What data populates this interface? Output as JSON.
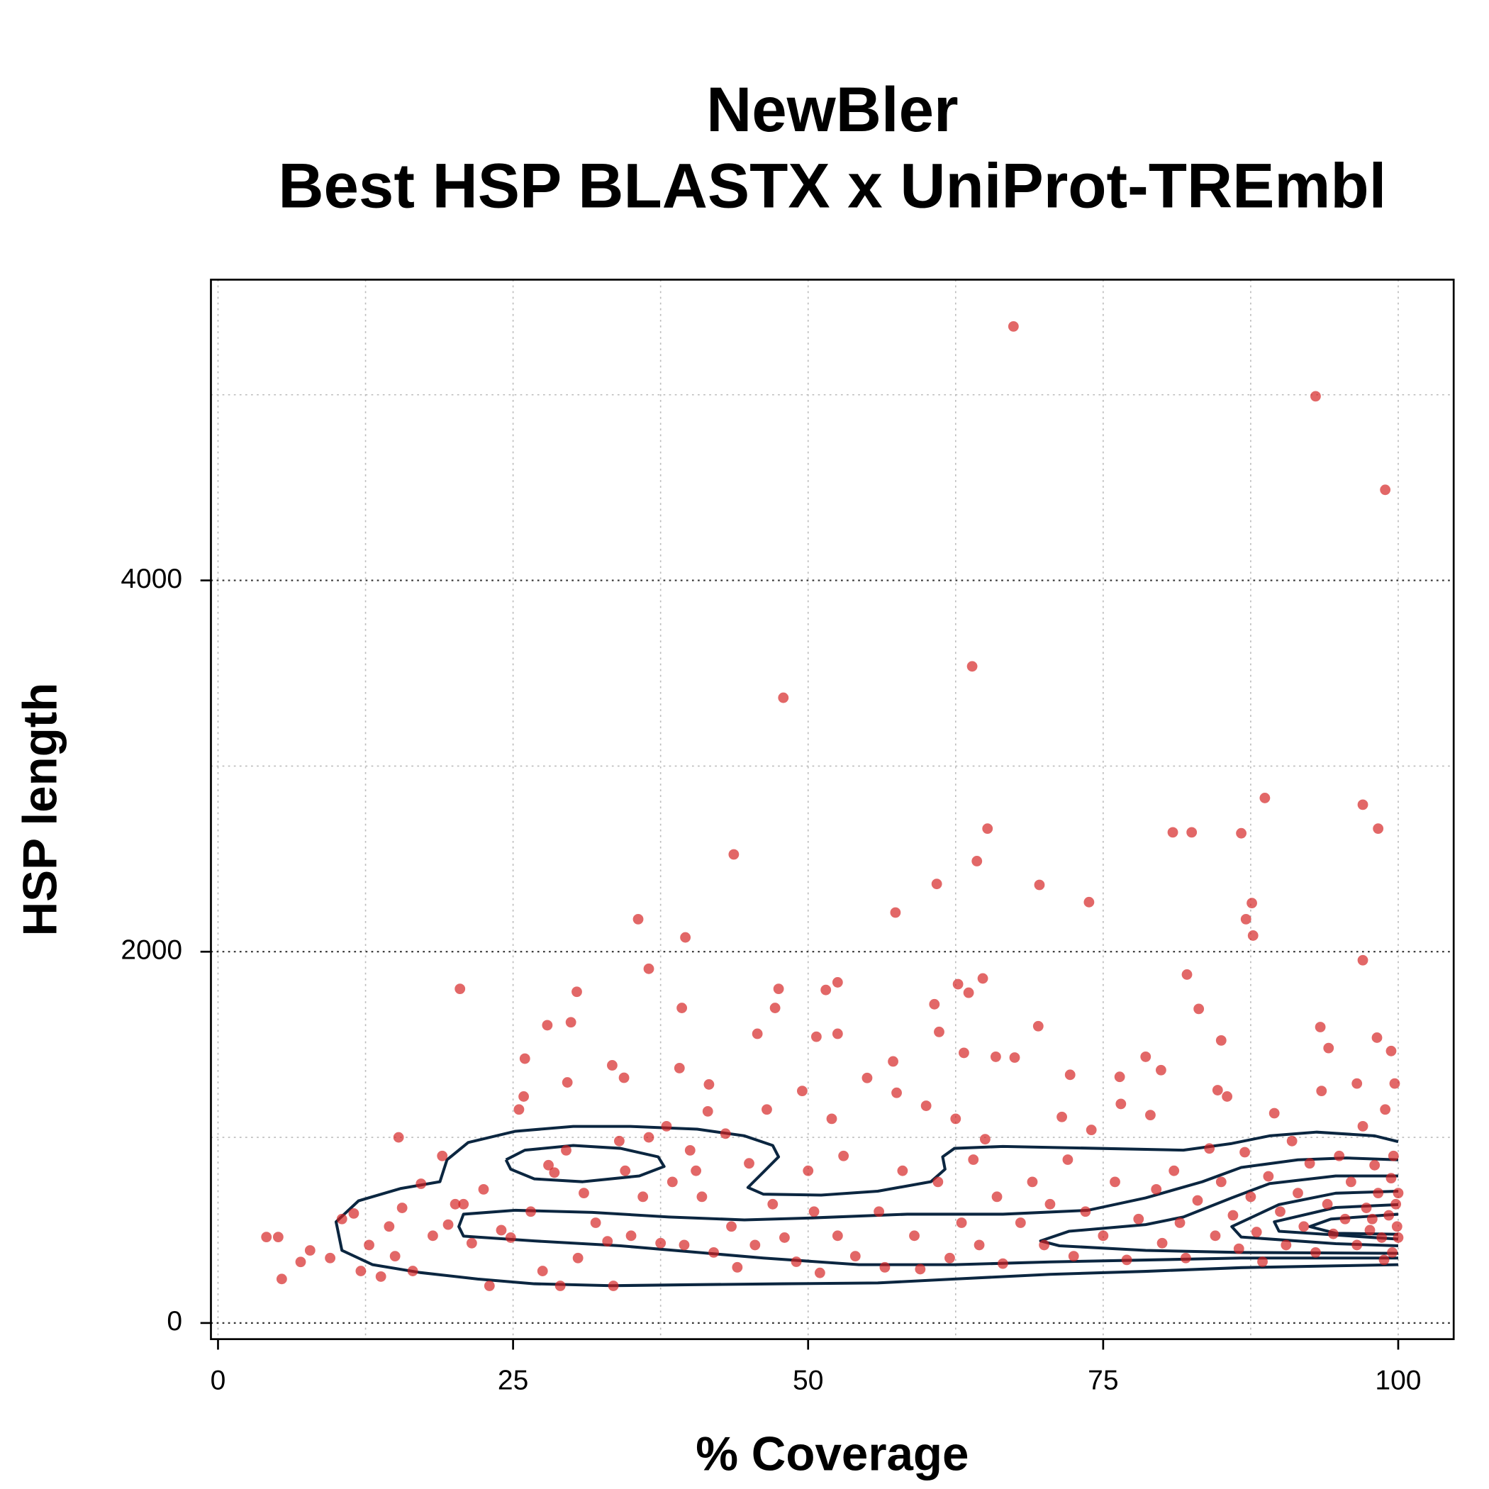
{
  "chart_data": {
    "type": "scatter",
    "title": "NewBler",
    "subtitle": "Best HSP BLASTX x UniProt-TREmbl",
    "x_label": "% Coverage",
    "y_label": "HSP length",
    "xlim": [
      -0.6,
      104.7
    ],
    "ylim": [
      -87,
      5620
    ],
    "xticks": [
      0,
      25,
      50,
      75,
      100
    ],
    "yticks": [
      0,
      2000,
      4000
    ],
    "minor_xticks": [
      12.5,
      37.5,
      62.5,
      87.5
    ],
    "minor_yticks": [
      1000,
      3000,
      5000
    ],
    "grid": true,
    "color": "#d41f1f",
    "contour_color": "#0b2640",
    "x": [
      67.4,
      93.0,
      98.9,
      63.9,
      47.9,
      88.7,
      97.0,
      98.3,
      65.2,
      80.9,
      82.5,
      86.7,
      43.7,
      64.3,
      60.9,
      69.6,
      73.8,
      87.6,
      57.4,
      35.6,
      87.1,
      39.6,
      87.7,
      97.0,
      36.5,
      82.1,
      20.5,
      30.4,
      47.5,
      64.8,
      52.5,
      51.5,
      62.7,
      63.6,
      60.7,
      39.3,
      47.2,
      83.1,
      27.9,
      29.9,
      69.5,
      93.4,
      61.1,
      45.7,
      50.7,
      52.5,
      98.2,
      85.0,
      94.1,
      26.0,
      78.6,
      65.9,
      63.2,
      99.4,
      57.2,
      33.4,
      39.1,
      79.9,
      72.2,
      76.4,
      84.7,
      96.5,
      29.6,
      41.6,
      34.4,
      4.1,
      5.1,
      5.4,
      7,
      7.8,
      9.5,
      10.5,
      11.5,
      12.1,
      12.8,
      13.8,
      14.5,
      15,
      15.3,
      15.6,
      16.5,
      17.2,
      18.2,
      19,
      19.5,
      20.1,
      20.8,
      21.5,
      22.5,
      23,
      24,
      24.8,
      25.5,
      25.9,
      26.5,
      27.5,
      28,
      28.5,
      29,
      29.5,
      30.5,
      31,
      32,
      33,
      33.5,
      34,
      34.5,
      35,
      36,
      36.5,
      37.5,
      38,
      38.5,
      39.5,
      40,
      40.5,
      41,
      41.5,
      42,
      43,
      43.5,
      44,
      45,
      45.5,
      46.5,
      47,
      48,
      49,
      49.5,
      50,
      50.5,
      51,
      52,
      52.5,
      53,
      54,
      55,
      56,
      56.5,
      57.5,
      58,
      59,
      59.5,
      60,
      61,
      62,
      62.5,
      63,
      64,
      64.5,
      65,
      66,
      66.5,
      67.5,
      68,
      69,
      70,
      70.5,
      71.5,
      72,
      72.5,
      73.5,
      74,
      75,
      76,
      76.5,
      77,
      78,
      79,
      79.5,
      80,
      81,
      81.5,
      82,
      83,
      84,
      84.5,
      85,
      85.5,
      86,
      86.5,
      87,
      87.5,
      88,
      88.5,
      89,
      89.5,
      90,
      90.5,
      91,
      91.5,
      92,
      92.5,
      93,
      93.5,
      94,
      94.5,
      95,
      95.5,
      96,
      96.5,
      97,
      97.3,
      97.6,
      98,
      98.3,
      98.6,
      98.9,
      99.2,
      99.4,
      99.6,
      99.8,
      99.9,
      100,
      100,
      99.7,
      99.5,
      98.8,
      97.8
    ],
    "y": [
      5368,
      4992,
      4488,
      3537,
      3368,
      2828,
      2792,
      2663,
      2663,
      2643,
      2643,
      2638,
      2524,
      2488,
      2365,
      2360,
      2267,
      2262,
      2211,
      2175,
      2175,
      2077,
      2087,
      1954,
      1908,
      1877,
      1800,
      1784,
      1800,
      1856,
      1835,
      1794,
      1825,
      1779,
      1717,
      1697,
      1697,
      1692,
      1604,
      1620,
      1599,
      1594,
      1568,
      1558,
      1542,
      1558,
      1537,
      1522,
      1481,
      1424,
      1434,
      1434,
      1455,
      1465,
      1409,
      1388,
      1373,
      1362,
      1337,
      1326,
      1254,
      1290,
      1296,
      1285,
      1321,
      463,
      463,
      237,
      329,
      391,
      350,
      560,
      590,
      280,
      420,
      250,
      520,
      360,
      1000,
      620,
      280,
      750,
      470,
      900,
      530,
      640,
      640,
      430,
      720,
      200,
      500,
      460,
      1150,
      1220,
      600,
      280,
      850,
      810,
      200,
      930,
      350,
      700,
      540,
      440,
      200,
      980,
      820,
      470,
      680,
      1000,
      430,
      1060,
      760,
      420,
      930,
      820,
      680,
      1140,
      380,
      1020,
      520,
      300,
      860,
      420,
      1150,
      640,
      460,
      330,
      1250,
      820,
      600,
      270,
      1100,
      470,
      900,
      360,
      1320,
      600,
      300,
      1240,
      820,
      470,
      290,
      1170,
      760,
      350,
      1100,
      540,
      880,
      420,
      990,
      680,
      320,
      1430,
      540,
      760,
      420,
      640,
      1110,
      880,
      360,
      600,
      1040,
      470,
      760,
      1180,
      340,
      560,
      1120,
      720,
      430,
      820,
      540,
      350,
      660,
      940,
      470,
      760,
      1220,
      580,
      400,
      920,
      680,
      490,
      330,
      790,
      1130,
      600,
      420,
      980,
      700,
      520,
      860,
      380,
      1250,
      640,
      480,
      900,
      560,
      760,
      420,
      1060,
      620,
      500,
      850,
      700,
      460,
      1150,
      580,
      780,
      900,
      640,
      520,
      700,
      460,
      1290,
      380,
      340,
      560
    ],
    "contours": [
      {
        "x": [
          100,
          98.0,
          93.1,
          89.1,
          85.9,
          81.8,
          74.5,
          66.5,
          62.4,
          61.4,
          61.6,
          60.4,
          55.9,
          51.1,
          46.2,
          44.9,
          46.2,
          47.5,
          47.0,
          44.6,
          40.6,
          34.9,
          30.1,
          25.2,
          21.2,
          19.4,
          18.8,
          15.5,
          11.9,
          10.0,
          10.5,
          13.1,
          17.1,
          22.0,
          26.8,
          33.3,
          39.8,
          47.9,
          55.9,
          62.4,
          70.5,
          78.6,
          86.7,
          94.7,
          100
        ],
        "y": [
          977,
          1008,
          1028,
          1008,
          967,
          931,
          941,
          951,
          941,
          895,
          828,
          761,
          710,
          689,
          694,
          730,
          812,
          895,
          956,
          1008,
          1044,
          1059,
          1059,
          1033,
          972,
          879,
          761,
          725,
          658,
          545,
          391,
          314,
          272,
          237,
          211,
          201,
          206,
          211,
          216,
          237,
          262,
          278,
          298,
          308,
          314
        ]
      },
      {
        "x": [
          24.4,
          26.0,
          30.1,
          34.1,
          37.3,
          37.8,
          35.7,
          30.9,
          26.8,
          24.8,
          24.4
        ],
        "y": [
          879,
          931,
          956,
          941,
          895,
          843,
          792,
          761,
          776,
          828,
          879
        ]
      },
      {
        "x": [
          100,
          95.6,
          91.5,
          86.7,
          83.4,
          78.6,
          73.7,
          66.5,
          58.4,
          50.3,
          44.6,
          38.2,
          31.7,
          25.2,
          20.8,
          20.4,
          20.8,
          26.8,
          34.1,
          46.2,
          54.3,
          62.4,
          70.5,
          78.6,
          86.7,
          94.7,
          100
        ],
        "y": [
          879,
          889,
          879,
          838,
          761,
          674,
          607,
          586,
          586,
          566,
          555,
          571,
          596,
          607,
          586,
          519,
          468,
          442,
          416,
          350,
          314,
          314,
          329,
          339,
          350,
          350,
          350
        ]
      },
      {
        "x": [
          100,
          94.7,
          89.1,
          85.9,
          81.8,
          78.6,
          72.1,
          69.7,
          71.3,
          78.6,
          86.7,
          100
        ],
        "y": [
          792,
          792,
          751,
          674,
          571,
          530,
          494,
          442,
          416,
          391,
          380,
          375
        ]
      },
      {
        "x": [
          100,
          94.7,
          89.9,
          85.9,
          86.7,
          94.7,
          100
        ],
        "y": [
          710,
          699,
          638,
          519,
          463,
          427,
          416
        ]
      },
      {
        "x": [
          100,
          94.7,
          89.5,
          89.9,
          100
        ],
        "y": [
          638,
          622,
          545,
          494,
          452
        ]
      },
      {
        "x": [
          100,
          94.3,
          92.5,
          94.7,
          100
        ],
        "y": [
          586,
          560,
          519,
          483,
          478
        ]
      }
    ]
  }
}
